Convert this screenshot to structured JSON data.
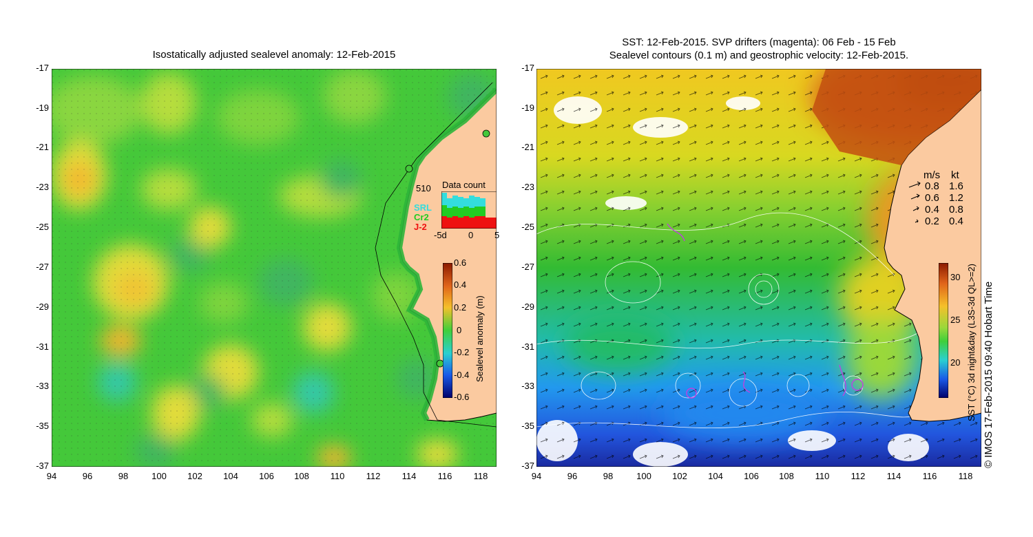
{
  "left_map": {
    "title": "Isostatically adjusted sealevel anomaly: 12-Feb-2015",
    "y_ticks": [
      "-17",
      "-19",
      "-21",
      "-23",
      "-25",
      "-27",
      "-29",
      "-31",
      "-33",
      "-35",
      "-37"
    ],
    "x_ticks": [
      "94",
      "96",
      "98",
      "100",
      "102",
      "104",
      "106",
      "108",
      "110",
      "112",
      "114",
      "116",
      "118"
    ],
    "data_count": {
      "title": "Data count",
      "max_label": "510",
      "satellites": [
        "SRL",
        "Cr2",
        "J-2"
      ],
      "sat_colors": [
        "#33dddd",
        "#22cc22",
        "#ee1111"
      ],
      "x_labels": [
        "-5d",
        "0",
        "5"
      ]
    },
    "colorbar": {
      "label": "Sealevel anomaly (m)",
      "ticks": [
        "0.6",
        "0.4",
        "0.2",
        "0",
        "-0.2",
        "-0.4",
        "-0.6"
      ]
    }
  },
  "right_map": {
    "title_line1": "SST: 12-Feb-2015. SVP drifters (magenta): 06 Feb - 15 Feb",
    "title_line2": "Sealevel contours (0.1 m) and geostrophic velocity: 12-Feb-2015.",
    "y_ticks": [
      "-17",
      "-19",
      "-21",
      "-23",
      "-25",
      "-27",
      "-29",
      "-31",
      "-33",
      "-35",
      "-37"
    ],
    "x_ticks": [
      "94",
      "96",
      "98",
      "100",
      "102",
      "104",
      "106",
      "108",
      "110",
      "112",
      "114",
      "116",
      "118"
    ],
    "velocity_legend": {
      "header_ms": "m/s",
      "header_kt": "kt",
      "rows": [
        {
          "ms": "0.8",
          "kt": "1.6"
        },
        {
          "ms": "0.6",
          "kt": "1.2"
        },
        {
          "ms": "0.4",
          "kt": "0.8"
        },
        {
          "ms": "0.2",
          "kt": "0.4"
        }
      ]
    },
    "colorbar": {
      "label": "SST (°C) 3d night&day (L3S-3d QL>=2)",
      "ticks": [
        "30",
        "25",
        "20"
      ]
    }
  },
  "credit": "© IMOS 17-Feb-2015 09:40 Hobart Time"
}
